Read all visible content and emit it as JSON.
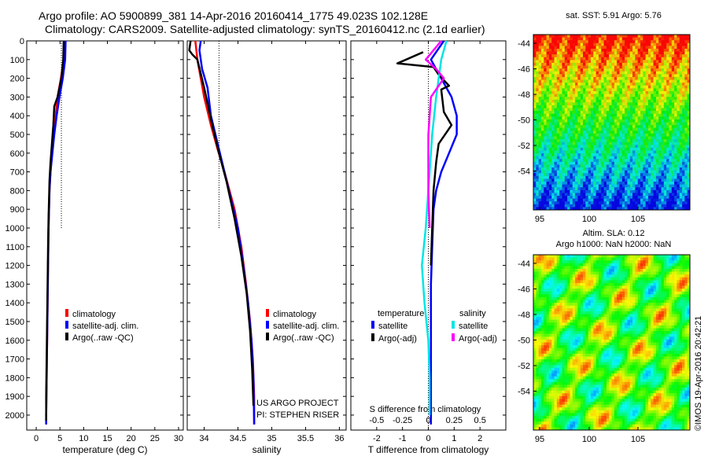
{
  "header": {
    "line1": "Argo profile: AO 5900899_381 14-Apr-2016 20160414_1775 49.023S 102.128E",
    "line2": "Climatology: CARS2009. Satellite-adjusted climatology: synTS_20160412.nc (2.1d earlier)"
  },
  "maps": {
    "sst_title": "sat. SST: 5.91 Argo: 5.76",
    "sla_title1": "Altim. SLA: 0.12",
    "sla_title2": "Argo h1000: NaN h2000: NaN",
    "lat_ticks": [
      "-44",
      "-46",
      "-48",
      "-50",
      "-52",
      "-54"
    ],
    "lon_ticks": [
      "95",
      "100",
      "105"
    ],
    "stamp": "©IMOS 19-Apr-2016 20:42:21"
  },
  "credits": {
    "line1": "US ARGO PROJECT",
    "line2": "PI: STEPHEN RISER"
  },
  "colors": {
    "climatology": "#ff0000",
    "satellite": "#0000ff",
    "argo": "#000000",
    "sat_salinity": "#00e5e5",
    "argo_salinity": "#ff00ff"
  },
  "chart_data": [
    {
      "type": "line",
      "xlabel": "temperature (deg C)",
      "xlim": [
        -2,
        31
      ],
      "ylim": [
        0,
        2080
      ],
      "x_ticks": [
        "0",
        "5",
        "10",
        "15",
        "20",
        "25",
        "30"
      ],
      "y_ticks": [
        "0",
        "100",
        "200",
        "300",
        "400",
        "500",
        "600",
        "700",
        "800",
        "900",
        "1000",
        "1100",
        "1200",
        "1300",
        "1400",
        "1500",
        "1600",
        "1700",
        "1800",
        "1900",
        "2000"
      ],
      "legend": [
        "climatology",
        "satellite-adj. clim.",
        "Argo(..raw -QC)"
      ],
      "series": [
        {
          "name": "climatology",
          "points": [
            [
              6.0,
              0
            ],
            [
              5.8,
              100
            ],
            [
              5.2,
              200
            ],
            [
              4.5,
              300
            ],
            [
              4.1,
              400
            ],
            [
              3.7,
              500
            ],
            [
              3.3,
              600
            ],
            [
              3.0,
              700
            ],
            [
              2.8,
              800
            ],
            [
              2.7,
              900
            ],
            [
              2.6,
              1000
            ],
            [
              2.5,
              1200
            ],
            [
              2.4,
              1400
            ],
            [
              2.3,
              1600
            ],
            [
              2.2,
              1800
            ],
            [
              2.1,
              2000
            ],
            [
              2.1,
              2050
            ]
          ]
        },
        {
          "name": "satellite-adj. clim.",
          "points": [
            [
              6.2,
              0
            ],
            [
              6.1,
              100
            ],
            [
              5.6,
              200
            ],
            [
              4.9,
              300
            ],
            [
              4.3,
              400
            ],
            [
              3.8,
              500
            ],
            [
              3.4,
              600
            ],
            [
              3.0,
              700
            ],
            [
              2.8,
              800
            ],
            [
              2.7,
              900
            ],
            [
              2.6,
              1000
            ],
            [
              2.5,
              1200
            ],
            [
              2.4,
              1400
            ],
            [
              2.3,
              1600
            ],
            [
              2.2,
              1800
            ],
            [
              2.1,
              2000
            ],
            [
              2.1,
              2050
            ]
          ]
        },
        {
          "name": "Argo(..raw -QC)",
          "points": [
            [
              5.8,
              0
            ],
            [
              5.7,
              100
            ],
            [
              5.3,
              200
            ],
            [
              4.5,
              300
            ],
            [
              3.8,
              350
            ],
            [
              3.6,
              450
            ],
            [
              3.3,
              550
            ],
            [
              3.0,
              650
            ],
            [
              2.8,
              750
            ],
            [
              2.7,
              850
            ],
            [
              2.6,
              950
            ],
            [
              2.5,
              1100
            ],
            [
              2.4,
              1300
            ],
            [
              2.3,
              1500
            ],
            [
              2.2,
              1700
            ],
            [
              2.1,
              1900
            ],
            [
              2.1,
              2030
            ]
          ]
        }
      ],
      "ref_x": 5.3
    },
    {
      "type": "line",
      "xlabel": "salinity",
      "xlim": [
        33.75,
        36.1
      ],
      "ylim": [
        0,
        2080
      ],
      "x_ticks": [
        "34",
        "34.5",
        "35",
        "35.5",
        "36"
      ],
      "legend": [
        "climatology",
        "satellite-adj. clim.",
        "Argo(..raw -QC)"
      ],
      "series": [
        {
          "name": "climatology",
          "points": [
            [
              33.87,
              0
            ],
            [
              33.9,
              100
            ],
            [
              33.95,
              200
            ],
            [
              34.0,
              300
            ],
            [
              34.1,
              450
            ],
            [
              34.2,
              580
            ],
            [
              34.3,
              700
            ],
            [
              34.45,
              900
            ],
            [
              34.55,
              1100
            ],
            [
              34.62,
              1300
            ],
            [
              34.68,
              1500
            ],
            [
              34.72,
              1700
            ],
            [
              34.74,
              1900
            ],
            [
              34.74,
              2050
            ]
          ]
        },
        {
          "name": "satellite-adj. clim.",
          "points": [
            [
              33.95,
              0
            ],
            [
              33.93,
              50
            ],
            [
              33.97,
              150
            ],
            [
              34.05,
              250
            ],
            [
              34.1,
              400
            ],
            [
              34.2,
              550
            ],
            [
              34.3,
              700
            ],
            [
              34.4,
              850
            ],
            [
              34.5,
              1000
            ],
            [
              34.58,
              1200
            ],
            [
              34.65,
              1400
            ],
            [
              34.7,
              1600
            ],
            [
              34.73,
              1800
            ],
            [
              34.74,
              2050
            ]
          ]
        },
        {
          "name": "Argo(..raw -QC)",
          "points": [
            [
              33.8,
              0
            ],
            [
              33.78,
              50
            ],
            [
              33.82,
              70
            ],
            [
              33.9,
              100
            ],
            [
              34.0,
              250
            ],
            [
              34.12,
              450
            ],
            [
              34.22,
              600
            ],
            [
              34.33,
              750
            ],
            [
              34.45,
              950
            ],
            [
              34.55,
              1150
            ],
            [
              34.63,
              1350
            ],
            [
              34.68,
              1550
            ],
            [
              34.71,
              1750
            ],
            [
              34.73,
              1950
            ]
          ]
        }
      ],
      "ref_x": 34.22
    },
    {
      "type": "line",
      "xlabel": "T difference from climatology",
      "title_top": "S difference from climatology",
      "xlim": [
        -3,
        3
      ],
      "ylim": [
        0,
        2080
      ],
      "x_ticks": [
        "-2",
        "-1",
        "0",
        "1",
        "2"
      ],
      "x_ticks_top": [
        "-0.5",
        "-0.25",
        "0",
        "0.25",
        "0.5"
      ],
      "legend_titles": [
        "temperature",
        "salinity"
      ],
      "legend": [
        "satellite",
        "Argo(-adj)",
        "satellite",
        "Argo(-adj)"
      ],
      "series": [
        {
          "name": "satellite",
          "group": "temperature",
          "points": [
            [
              0.6,
              0
            ],
            [
              0.1,
              100
            ],
            [
              0.5,
              200
            ],
            [
              0.9,
              300
            ],
            [
              1.1,
              400
            ],
            [
              1.1,
              500
            ],
            [
              0.8,
              600
            ],
            [
              0.5,
              700
            ],
            [
              0.3,
              800
            ],
            [
              0.2,
              900
            ],
            [
              0.15,
              1100
            ],
            [
              0.1,
              1300
            ],
            [
              0.1,
              1600
            ],
            [
              0.1,
              1900
            ],
            [
              0.1,
              2050
            ]
          ]
        },
        {
          "name": "Argo(-adj)",
          "group": "temperature",
          "points": [
            [
              -0.2,
              60
            ],
            [
              -1.2,
              120
            ],
            [
              0.2,
              140
            ],
            [
              0.4,
              180
            ],
            [
              0.8,
              240
            ],
            [
              0.5,
              260
            ],
            [
              0.6,
              380
            ],
            [
              0.9,
              450
            ],
            [
              0.4,
              550
            ],
            [
              0.3,
              650
            ],
            [
              0.2,
              800
            ],
            [
              0.15,
              1000
            ],
            [
              0.1,
              1200
            ]
          ]
        },
        {
          "name": "satellite",
          "group": "salinity",
          "points": [
            [
              0.7,
              0
            ],
            [
              0.5,
              100
            ],
            [
              0.3,
              300
            ],
            [
              0.15,
              500
            ],
            [
              0.0,
              800
            ],
            [
              -0.1,
              1000
            ],
            [
              -0.25,
              1200
            ],
            [
              -0.15,
              1400
            ],
            [
              0.0,
              1600
            ],
            [
              0.05,
              1800
            ],
            [
              0.05,
              2000
            ]
          ]
        },
        {
          "name": "Argo(-adj)",
          "group": "salinity",
          "points": [
            [
              0.5,
              0
            ],
            [
              -0.1,
              100
            ],
            [
              0.3,
              150
            ],
            [
              0.6,
              200
            ],
            [
              0.1,
              300
            ],
            [
              0.0,
              500
            ],
            [
              0.0,
              800
            ],
            [
              0.05,
              1000
            ]
          ]
        }
      ]
    }
  ]
}
